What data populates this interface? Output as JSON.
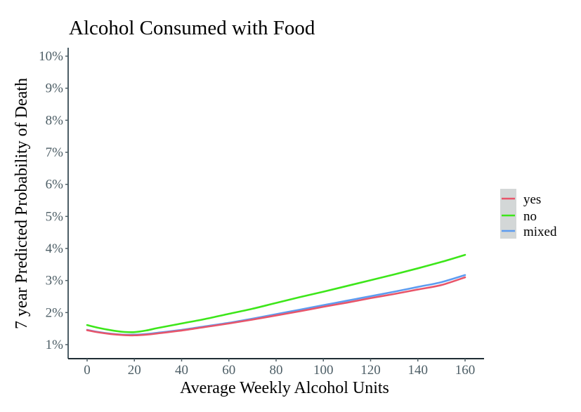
{
  "chart_data": {
    "type": "line",
    "title": "Alcohol Consumed with Food",
    "xlabel": "Average Weekly Alcohol Units",
    "ylabel": "7 year Predicted Probability of Death",
    "xlim": [
      0,
      160
    ],
    "ylim": [
      1,
      10
    ],
    "x_ticks": [
      0,
      20,
      40,
      60,
      80,
      100,
      120,
      140,
      160
    ],
    "x_tick_labels": [
      "0",
      "20",
      "40",
      "60",
      "80",
      "100",
      "120",
      "140",
      "160"
    ],
    "y_ticks": [
      1,
      2,
      3,
      4,
      5,
      6,
      7,
      8,
      9,
      10
    ],
    "y_tick_labels": [
      "1%",
      "2%",
      "3%",
      "4%",
      "5%",
      "6%",
      "7%",
      "8%",
      "9%",
      "10%"
    ],
    "grid": false,
    "legend_position": "right",
    "x": [
      0,
      5,
      10,
      15,
      20,
      25,
      30,
      40,
      50,
      60,
      70,
      80,
      90,
      100,
      110,
      120,
      130,
      140,
      150,
      160
    ],
    "series": [
      {
        "name": "yes",
        "color": "#e8556a",
        "values": [
          1.45,
          1.38,
          1.33,
          1.3,
          1.29,
          1.31,
          1.35,
          1.44,
          1.55,
          1.66,
          1.78,
          1.91,
          2.04,
          2.18,
          2.31,
          2.45,
          2.58,
          2.72,
          2.86,
          3.1
        ]
      },
      {
        "name": "no",
        "color": "#3de61a",
        "values": [
          1.61,
          1.52,
          1.45,
          1.4,
          1.39,
          1.44,
          1.52,
          1.66,
          1.8,
          1.96,
          2.12,
          2.3,
          2.48,
          2.65,
          2.83,
          3.01,
          3.19,
          3.38,
          3.58,
          3.8
        ]
      },
      {
        "name": "mixed",
        "color": "#5d9cf0",
        "values": [
          1.46,
          1.39,
          1.34,
          1.31,
          1.31,
          1.33,
          1.37,
          1.46,
          1.57,
          1.68,
          1.81,
          1.95,
          2.09,
          2.23,
          2.37,
          2.51,
          2.65,
          2.8,
          2.95,
          3.17
        ]
      }
    ]
  }
}
